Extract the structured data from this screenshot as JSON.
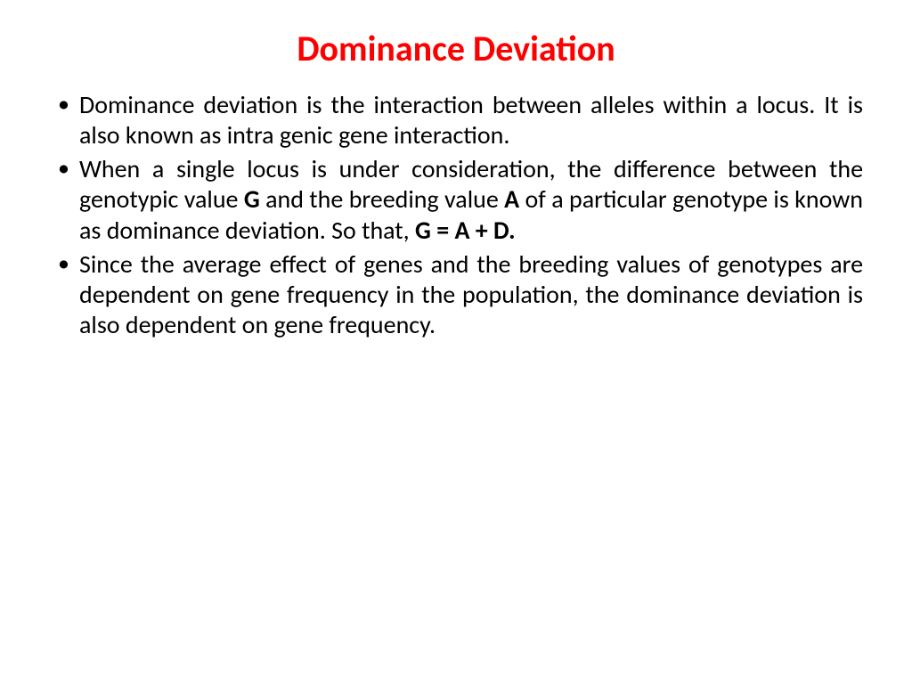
{
  "title": {
    "text": "Dominance Deviation",
    "color": "#ff0000",
    "fontsize": 40
  },
  "body": {
    "fontsize": 28,
    "color": "#000000"
  },
  "bullets": [
    {
      "segments": [
        {
          "text": "Dominance deviation is the interaction between alleles within a locus. It is also known as intra genic gene interaction.",
          "bold": false
        }
      ]
    },
    {
      "segments": [
        {
          "text": "When a single locus is under consideration, the difference between the genotypic value ",
          "bold": false
        },
        {
          "text": "G",
          "bold": true
        },
        {
          "text": " and the breeding value ",
          "bold": false
        },
        {
          "text": "A",
          "bold": true
        },
        {
          "text": " of a particular genotype is known as dominance deviation. So that, ",
          "bold": false
        },
        {
          "text": "G = A + D.",
          "bold": true
        }
      ]
    },
    {
      "segments": [
        {
          "text": "Since the average effect of genes and the breeding values of genotypes are dependent on gene frequency in the population, the dominance deviation is also dependent on gene frequency.",
          "bold": false
        }
      ]
    }
  ]
}
